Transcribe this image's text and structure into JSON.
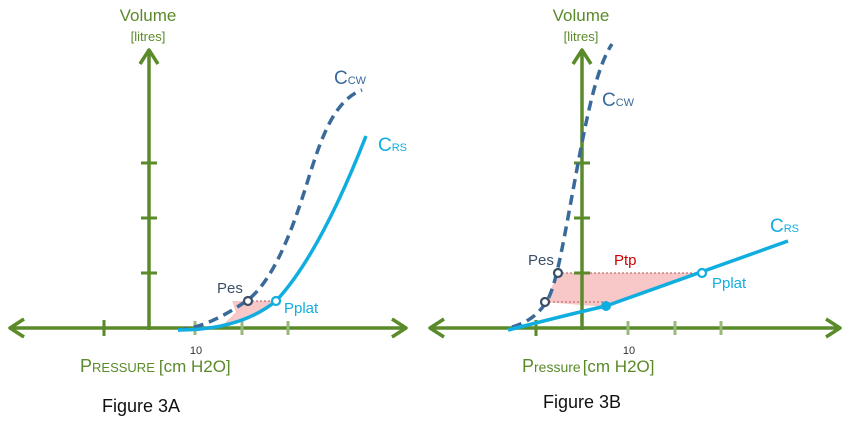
{
  "colors": {
    "axis": "#5a8a2a",
    "tick_light": "#9ab87a",
    "ccw": "#3a6a9a",
    "crs": "#10aee0",
    "pes": "#3a4f66",
    "ptp": "#cc0000",
    "shade": "#f8c8c8"
  },
  "panel_a": {
    "y_axis_title": "Volume",
    "y_axis_unit": "[litres]",
    "x_axis_title_big": "P",
    "x_axis_title_small": "RESSURE",
    "x_axis_unit": "[cm H2O]",
    "x_tick_label": "10",
    "curve_ccw_main": "C",
    "curve_ccw_sub": "CW",
    "curve_crs_main": "C",
    "curve_crs_sub": "RS",
    "pes_label": "Pes",
    "pplat_label": "Pplat",
    "caption": "Figure 3A"
  },
  "panel_b": {
    "y_axis_title": "Volume",
    "y_axis_unit": "[litres]",
    "x_axis_title_big": "P",
    "x_axis_title_small": "ressure",
    "x_axis_unit": "[cm H2O]",
    "x_tick_label": "10",
    "curve_ccw_main": "C",
    "curve_ccw_sub": "CW",
    "curve_crs_main": "C",
    "curve_crs_sub": "RS",
    "pes_label": "Pes",
    "ptp_label": "Ptp",
    "pplat_label": "Pplat",
    "caption": "Figure 3B"
  }
}
